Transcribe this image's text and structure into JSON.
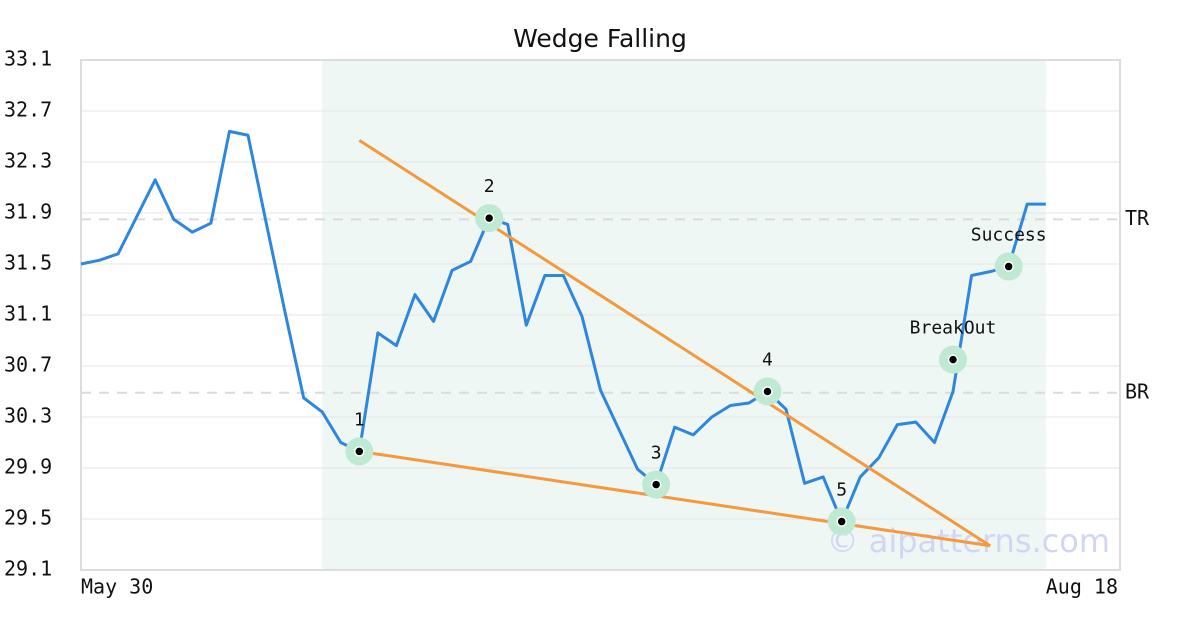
{
  "chart_data": {
    "type": "line",
    "title": "Wedge Falling",
    "x": [
      0,
      1,
      2,
      3,
      4,
      5,
      6,
      7,
      8,
      9,
      10,
      11,
      12,
      13,
      14,
      15,
      16,
      17,
      18,
      19,
      20,
      21,
      22,
      23,
      24,
      25,
      26,
      27,
      28,
      29,
      30,
      31,
      32,
      33,
      34,
      35,
      36,
      37,
      38,
      39,
      40,
      41,
      42,
      43,
      44,
      45,
      46,
      47,
      48,
      49,
      50,
      51,
      52
    ],
    "series": [
      {
        "color": "#2f87dd",
        "values": [
          31.5,
          31.53,
          31.58,
          31.87,
          32.16,
          31.85,
          31.75,
          31.82,
          32.54,
          32.51,
          31.81,
          31.12,
          30.45,
          30.34,
          30.1,
          30.03,
          30.96,
          30.86,
          31.26,
          31.05,
          31.45,
          31.52,
          31.86,
          31.81,
          31.02,
          31.41,
          31.41,
          31.09,
          30.51,
          30.2,
          29.89,
          29.77,
          30.22,
          30.16,
          30.3,
          30.39,
          30.41,
          30.5,
          30.36,
          29.78,
          29.83,
          29.48,
          29.83,
          29.98,
          30.24,
          30.26,
          30.1,
          30.5,
          31.41,
          31.44,
          31.48,
          31.97,
          31.97
        ]
      }
    ],
    "xlim": [
      0,
      56
    ],
    "xticks": [
      {
        "value": 0,
        "label": "May 30"
      },
      {
        "value": 56,
        "label": "Aug 18"
      }
    ],
    "ylim": [
      29.1,
      33.1
    ],
    "yticks": [
      29.1,
      29.5,
      29.9,
      30.3,
      30.7,
      31.1,
      31.5,
      31.9,
      32.3,
      32.7,
      33.1
    ],
    "grid": true,
    "shaded_region": {
      "x": [
        13,
        52
      ],
      "color": "#eef7f3"
    },
    "reference_lines": [
      {
        "label": "TR",
        "value": 31.85
      },
      {
        "label": "BR",
        "value": 30.49
      }
    ],
    "trend_color": "#f5993f",
    "trend_lines": [
      {
        "x": [
          15,
          49
        ],
        "y": [
          32.47,
          29.29
        ]
      },
      {
        "x": [
          15,
          49
        ],
        "y": [
          30.03,
          29.29
        ]
      }
    ],
    "marker_color": "#bfe9d3",
    "points": [
      {
        "label": "1",
        "x": 15,
        "y": 30.03
      },
      {
        "label": "2",
        "x": 22,
        "y": 31.86
      },
      {
        "label": "3",
        "x": 31,
        "y": 29.77
      },
      {
        "label": "4",
        "x": 37,
        "y": 30.5
      },
      {
        "label": "5",
        "x": 41,
        "y": 29.48
      },
      {
        "label": "BreakOut",
        "x": 47,
        "y": 30.75
      },
      {
        "label": "Success",
        "x": 50,
        "y": 31.48
      }
    ],
    "watermark": "© aipatterns.com"
  }
}
